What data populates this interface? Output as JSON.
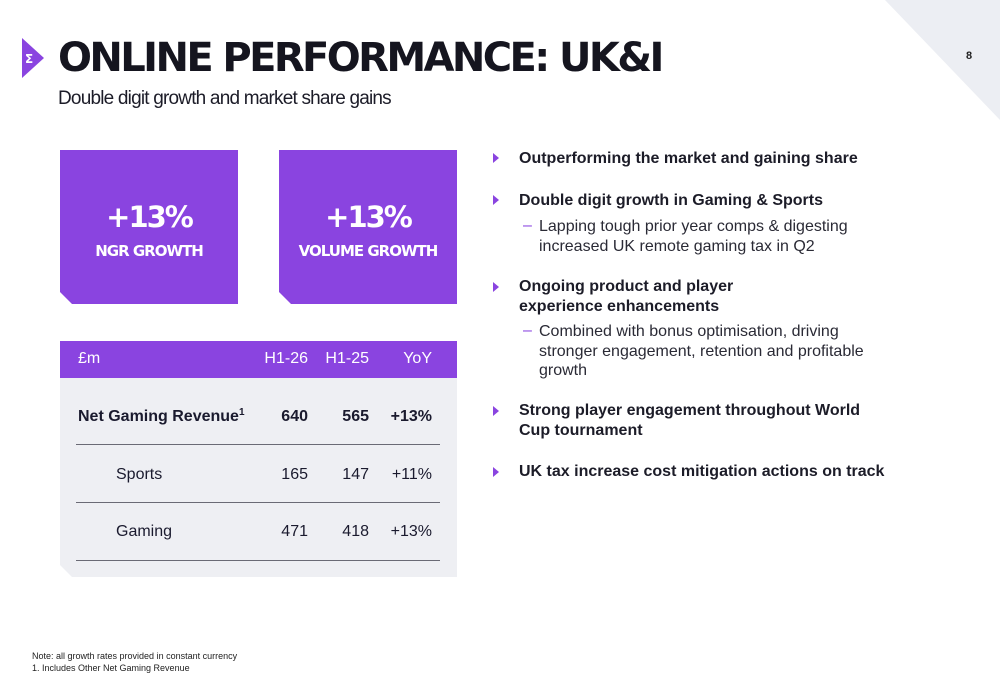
{
  "page": {
    "title": "ONLINE PERFORMANCE: UK&I",
    "subtitle": "Double digit growth and market share gains",
    "page_number": "8"
  },
  "kpis": [
    {
      "value": "+13%",
      "label": "NGR GROWTH"
    },
    {
      "value": "+13%",
      "label": "VOLUME GROWTH"
    }
  ],
  "table": {
    "headers": [
      "£m",
      "H1-26",
      "H1-25",
      "YoY"
    ],
    "rows": [
      {
        "label": "Net Gaming Revenue",
        "footnote_marker": "1",
        "h1_26": "640",
        "h1_25": "565",
        "yoy": "+13%"
      },
      {
        "label": "Sports",
        "h1_26": "165",
        "h1_25": "147",
        "yoy": "+11%"
      },
      {
        "label": "Gaming",
        "h1_26": "471",
        "h1_25": "418",
        "yoy": "+13%"
      }
    ]
  },
  "bullets": [
    {
      "text": "Outperforming the market and gaining share"
    },
    {
      "text": "Double digit growth in Gaming & Sports",
      "sub": "Lapping tough prior year comps & digesting increased UK remote gaming tax in Q2"
    },
    {
      "text": "Ongoing product and player experience enhancements",
      "sub": "Combined with bonus optimisation, driving stronger engagement, retention and profitable growth"
    },
    {
      "text": "Strong player engagement throughout World Cup tournament"
    },
    {
      "text": "UK tax increase cost mitigation actions on track"
    }
  ],
  "notes": {
    "line1": "Note: all growth rates provided in constant currency",
    "line2": "1.  Includes Other Net Gaming Revenue"
  },
  "colors": {
    "accent": "#8a44e0",
    "panel": "#eeeff3",
    "corner": "#e9ebf0"
  }
}
